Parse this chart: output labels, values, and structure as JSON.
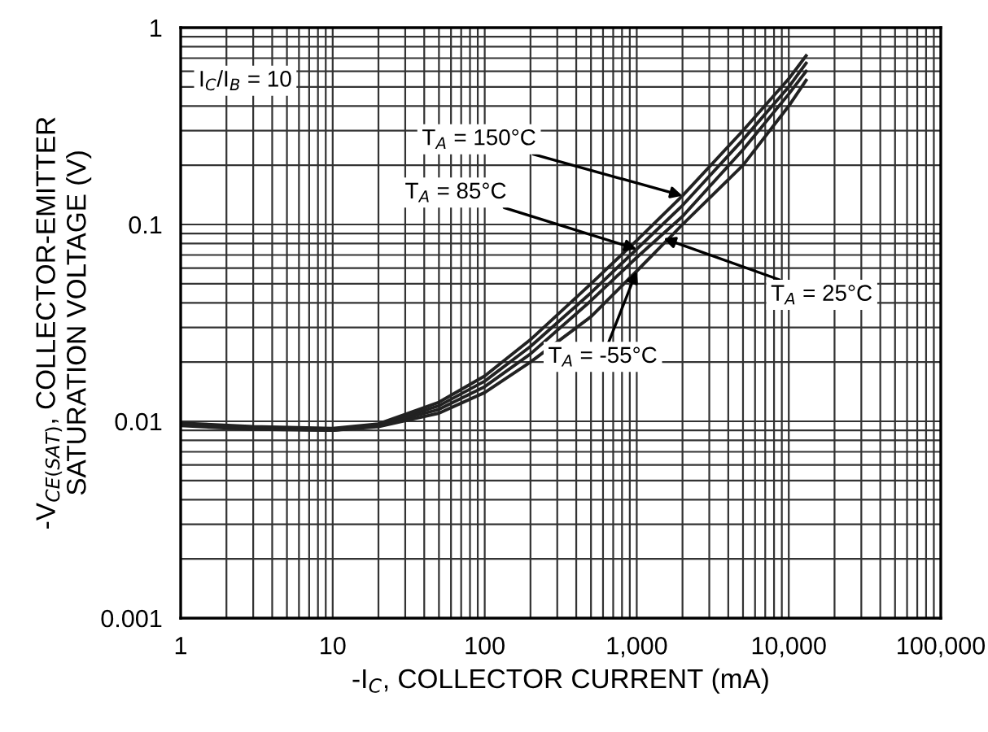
{
  "chart_data": {
    "type": "line",
    "xlabel": "-I$_{C}$, COLLECTOR CURRENT (mA)",
    "ylabel": "-V$_{CE(SAT)}$, COLLECTOR-EMITTER\nSATURATION VOLTAGE (V)",
    "log": "xy",
    "xlim": [
      1,
      100000
    ],
    "ylim": [
      0.001,
      1
    ],
    "grid": true,
    "marker": "none",
    "line_style": "solid",
    "xticks": [
      1,
      {
        "value": 2,
        "label": null
      },
      {
        "value": 3,
        "label": null
      },
      {
        "value": 4,
        "label": null
      },
      {
        "value": 5,
        "label": null
      },
      {
        "value": 6,
        "label": null
      },
      {
        "value": 7,
        "label": null
      },
      {
        "value": 8,
        "label": null
      },
      {
        "value": 9,
        "label": null
      },
      10,
      {
        "value": 20,
        "label": null
      },
      {
        "value": 30,
        "label": null
      },
      {
        "value": 40,
        "label": null
      },
      {
        "value": 50,
        "label": null
      },
      {
        "value": 60,
        "label": null
      },
      {
        "value": 70,
        "label": null
      },
      {
        "value": 80,
        "label": null
      },
      {
        "value": 90,
        "label": null
      },
      100,
      {
        "value": 200,
        "label": null
      },
      {
        "value": 300,
        "label": null
      },
      {
        "value": 400,
        "label": null
      },
      {
        "value": 500,
        "label": null
      },
      {
        "value": 600,
        "label": null
      },
      {
        "value": 700,
        "label": null
      },
      {
        "value": 800,
        "label": null
      },
      {
        "value": 900,
        "label": null
      },
      {
        "value": 1000,
        "label": "1,000"
      },
      {
        "value": 2000,
        "label": null
      },
      {
        "value": 3000,
        "label": null
      },
      {
        "value": 4000,
        "label": null
      },
      {
        "value": 5000,
        "label": null
      },
      {
        "value": 6000,
        "label": null
      },
      {
        "value": 7000,
        "label": null
      },
      {
        "value": 8000,
        "label": null
      },
      {
        "value": 9000,
        "label": null
      },
      {
        "value": 10000,
        "label": "10,000"
      },
      {
        "value": 20000,
        "label": null
      },
      {
        "value": 30000,
        "label": null
      },
      {
        "value": 40000,
        "label": null
      },
      {
        "value": 50000,
        "label": null
      },
      {
        "value": 60000,
        "label": null
      },
      {
        "value": 70000,
        "label": null
      },
      {
        "value": 80000,
        "label": null
      },
      {
        "value": 90000,
        "label": null
      },
      {
        "value": 100000,
        "label": "100,000"
      }
    ],
    "yticks": [
      0.001,
      {
        "value": 0.002,
        "label": null
      },
      {
        "value": 0.003,
        "label": null
      },
      {
        "value": 0.004,
        "label": null
      },
      {
        "value": 0.005,
        "label": null
      },
      {
        "value": 0.006,
        "label": null
      },
      {
        "value": 0.007,
        "label": null
      },
      {
        "value": 0.008,
        "label": null
      },
      {
        "value": 0.009,
        "label": null
      },
      0.01,
      {
        "value": 0.02,
        "label": null
      },
      {
        "value": 0.03,
        "label": null
      },
      {
        "value": 0.04,
        "label": null
      },
      {
        "value": 0.05,
        "label": null
      },
      {
        "value": 0.06,
        "label": null
      },
      {
        "value": 0.07,
        "label": null
      },
      {
        "value": 0.08,
        "label": null
      },
      {
        "value": 0.09,
        "label": null
      },
      0.1,
      {
        "value": 0.2,
        "label": null
      },
      {
        "value": 0.3,
        "label": null
      },
      {
        "value": 0.4,
        "label": null
      },
      {
        "value": 0.5,
        "label": null
      },
      {
        "value": 0.6,
        "label": null
      },
      {
        "value": 0.7,
        "label": null
      },
      {
        "value": 0.8,
        "label": null
      },
      {
        "value": 0.9,
        "label": null
      },
      1
    ],
    "x": [
      1,
      3,
      10,
      20,
      50,
      100,
      200,
      500,
      1000,
      2000,
      5000,
      10000,
      13000
    ],
    "series": [
      {
        "color": "#222222",
        "values": [
          0.0098,
          0.0094,
          0.0092,
          0.0097,
          0.0125,
          0.017,
          0.026,
          0.05,
          0.083,
          0.14,
          0.3,
          0.55,
          0.72
        ]
      },
      {
        "color": "#222222",
        "values": [
          0.0097,
          0.0093,
          0.0091,
          0.0096,
          0.012,
          0.016,
          0.024,
          0.045,
          0.075,
          0.125,
          0.27,
          0.5,
          0.66
        ]
      },
      {
        "color": "#222222",
        "values": [
          0.0096,
          0.0092,
          0.009,
          0.0095,
          0.0115,
          0.015,
          0.022,
          0.041,
          0.068,
          0.11,
          0.24,
          0.46,
          0.6
        ]
      },
      {
        "color": "#222222",
        "values": [
          0.0095,
          0.0091,
          0.009,
          0.0094,
          0.011,
          0.014,
          0.02,
          0.034,
          0.058,
          0.1,
          0.2,
          0.4,
          0.54
        ]
      }
    ],
    "annotations": [
      "I$_{C}$/I$_{B}$ = 10",
      {
        "text": "T$_{A}$ = 150°C",
        "x": 2000,
        "y": 0.14
      },
      {
        "text": "T$_{A}$ = 85°C",
        "x": 1000,
        "y": 0.075
      },
      {
        "text": "T$_{A}$ = 25°C",
        "x": 1500,
        "y": 0.085
      },
      {
        "text": "T$_{A}$ = -55°C",
        "x": 1000,
        "y": 0.058
      }
    ]
  }
}
